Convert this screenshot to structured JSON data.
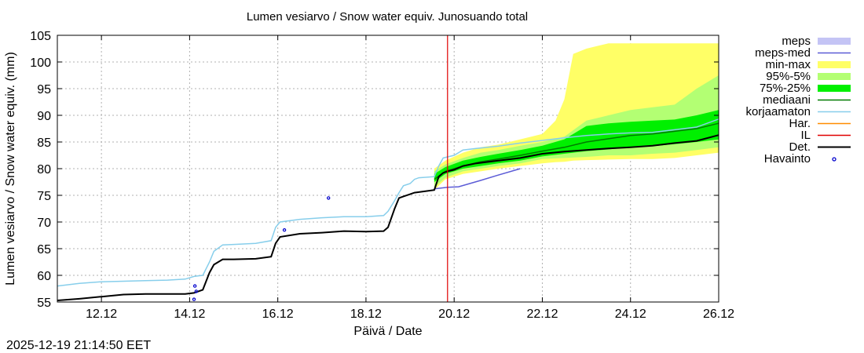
{
  "chart_data": {
    "type": "area",
    "title": "Lumen vesiarvo / Snow water equiv.  Junosuando total",
    "xlabel": "Päivä / Date",
    "ylabel": "Lumen vesiarvo / Snow water equiv. (mm)",
    "xlim": [
      11.0,
      26.0
    ],
    "ylim": [
      55,
      105
    ],
    "grid": true,
    "x_ticks": [
      {
        "x": 12,
        "label": "12.12"
      },
      {
        "x": 14,
        "label": "14.12"
      },
      {
        "x": 16,
        "label": "16.12"
      },
      {
        "x": 18,
        "label": "18.12"
      },
      {
        "x": 20,
        "label": "20.12"
      },
      {
        "x": 22,
        "label": "22.12"
      },
      {
        "x": 24,
        "label": "24.12"
      },
      {
        "x": 26,
        "label": "26.12"
      }
    ],
    "y_ticks": [
      {
        "y": 55,
        "label": "55"
      },
      {
        "y": 60,
        "label": "60"
      },
      {
        "y": 65,
        "label": "65"
      },
      {
        "y": 70,
        "label": "70"
      },
      {
        "y": 75,
        "label": "75"
      },
      {
        "y": 80,
        "label": "80"
      },
      {
        "y": 85,
        "label": "85"
      },
      {
        "y": 90,
        "label": "90"
      },
      {
        "y": 95,
        "label": "95"
      },
      {
        "y": 100,
        "label": "100"
      },
      {
        "y": 105,
        "label": "105"
      }
    ],
    "forecast_start_x": 19.85,
    "legend_position": "right",
    "legend": [
      {
        "label": "meps",
        "kind": "box",
        "color": "#c4c4f5"
      },
      {
        "label": "meps-med",
        "kind": "line",
        "color": "#5b5bd6"
      },
      {
        "label": "min-max",
        "kind": "box",
        "color": "#ffff66"
      },
      {
        "label": "95%-5%",
        "kind": "box",
        "color": "#b3ff73"
      },
      {
        "label": "75%-25%",
        "kind": "box",
        "color": "#00f000"
      },
      {
        "label": "mediaani",
        "kind": "line",
        "color": "#007a00"
      },
      {
        "label": "korjaamaton",
        "kind": "line",
        "color": "#87ceeb"
      },
      {
        "label": "Har.",
        "kind": "line",
        "color": "#ff8c00"
      },
      {
        "label": "IL",
        "kind": "line",
        "color": "#e00000"
      },
      {
        "label": "Det.",
        "kind": "line",
        "color": "#000000"
      },
      {
        "label": "Havainto",
        "kind": "point",
        "color": "#0000cc"
      }
    ],
    "series": [
      {
        "name": "min-max",
        "type": "band",
        "color": "#ffff66",
        "x": [
          19.55,
          19.8,
          20.2,
          20.6,
          21.0,
          21.5,
          22.0,
          22.3,
          22.5,
          22.7,
          23.0,
          23.5,
          24.0,
          24.5,
          25.0,
          25.5,
          26.0
        ],
        "lower": [
          76.0,
          78.0,
          79.0,
          79.5,
          80.0,
          80.5,
          81.0,
          81.2,
          81.3,
          81.5,
          81.6,
          81.7,
          81.8,
          81.8,
          82.0,
          82.5,
          83.0
        ],
        "upper": [
          80.0,
          81.5,
          83.0,
          84.0,
          84.5,
          85.5,
          86.5,
          89.0,
          93.0,
          101.5,
          102.5,
          103.5,
          103.5,
          103.5,
          103.5,
          103.5,
          103.5
        ]
      },
      {
        "name": "95%-5%",
        "type": "band",
        "color": "#b3ff73",
        "x": [
          19.55,
          19.8,
          20.2,
          20.6,
          21.0,
          21.5,
          22.0,
          22.5,
          23.0,
          23.5,
          24.0,
          24.5,
          25.0,
          25.5,
          26.0
        ],
        "lower": [
          76.5,
          78.3,
          79.5,
          80.0,
          80.5,
          81.0,
          81.8,
          82.0,
          82.2,
          82.5,
          82.5,
          82.8,
          83.0,
          83.5,
          84.0
        ],
        "upper": [
          79.5,
          80.8,
          82.0,
          83.0,
          83.5,
          84.3,
          85.0,
          86.0,
          89.0,
          90.0,
          91.0,
          91.5,
          92.0,
          95.0,
          97.5
        ]
      },
      {
        "name": "75%-25%",
        "type": "band",
        "color": "#00f000",
        "x": [
          19.55,
          19.8,
          20.2,
          20.6,
          21.0,
          21.5,
          22.0,
          22.5,
          23.0,
          23.5,
          24.0,
          24.5,
          25.0,
          25.5,
          26.0
        ],
        "lower": [
          77.5,
          79.0,
          80.0,
          80.5,
          81.0,
          81.5,
          82.3,
          82.8,
          83.3,
          83.6,
          84.0,
          84.2,
          84.6,
          85.0,
          85.5
        ],
        "upper": [
          79.0,
          80.3,
          81.5,
          82.2,
          82.8,
          83.5,
          84.3,
          85.5,
          88.0,
          88.5,
          88.8,
          89.0,
          89.2,
          90.0,
          91.0
        ]
      },
      {
        "name": "meps-med",
        "type": "line",
        "color": "#5b5bd6",
        "x": [
          19.55,
          19.85,
          20.1,
          20.6,
          21.0,
          21.5
        ],
        "y": [
          76.2,
          76.5,
          76.6,
          77.8,
          78.8,
          80.0
        ]
      },
      {
        "name": "korjaamaton",
        "type": "line",
        "color": "#87ceeb",
        "x": [
          11.0,
          11.5,
          12.0,
          12.5,
          13.0,
          13.5,
          13.9,
          14.1,
          14.3,
          14.45,
          14.55,
          14.75,
          15.0,
          15.5,
          15.85,
          15.95,
          16.05,
          16.5,
          17.0,
          17.5,
          18.0,
          18.4,
          18.5,
          18.65,
          18.75,
          18.85,
          19.0,
          19.1,
          19.2,
          19.55,
          19.65,
          19.75,
          19.85,
          20.0,
          20.2,
          20.5,
          21.0,
          21.5,
          22.0,
          22.5,
          23.0,
          23.5,
          24.0,
          24.5,
          25.0,
          25.5,
          26.0
        ],
        "y": [
          58.0,
          58.5,
          58.8,
          58.9,
          59.0,
          59.1,
          59.3,
          59.8,
          60.0,
          62.5,
          64.5,
          65.7,
          65.8,
          66.0,
          66.5,
          69.0,
          70.0,
          70.5,
          70.8,
          71.0,
          71.0,
          71.2,
          72.0,
          74.0,
          75.5,
          76.8,
          77.2,
          78.0,
          78.3,
          78.5,
          80.5,
          82.0,
          82.2,
          82.5,
          83.5,
          83.8,
          84.2,
          84.8,
          85.3,
          85.8,
          86.2,
          86.5,
          86.7,
          86.8,
          87.3,
          87.8,
          89.3
        ]
      },
      {
        "name": "mediaani",
        "type": "line",
        "color": "#007a00",
        "x": [
          19.55,
          19.8,
          20.2,
          20.6,
          21.0,
          21.5,
          22.0,
          22.5,
          23.0,
          23.5,
          24.0,
          24.5,
          25.0,
          25.5,
          26.0
        ],
        "y": [
          78.0,
          79.5,
          80.5,
          81.3,
          81.8,
          82.5,
          83.3,
          84.0,
          85.0,
          85.6,
          86.2,
          86.5,
          87.0,
          87.5,
          88.5
        ]
      },
      {
        "name": "Det.",
        "type": "line",
        "color": "#000000",
        "x": [
          11.0,
          11.5,
          12.0,
          12.5,
          13.0,
          13.5,
          13.9,
          14.1,
          14.3,
          14.45,
          14.55,
          14.75,
          15.0,
          15.5,
          15.85,
          15.95,
          16.05,
          16.5,
          17.0,
          17.5,
          18.0,
          18.4,
          18.5,
          18.65,
          18.75,
          18.85,
          19.0,
          19.1,
          19.2,
          19.55,
          19.65,
          19.75,
          19.85,
          20.0,
          20.2,
          20.5,
          21.0,
          21.5,
          22.0,
          22.5,
          23.0,
          23.5,
          24.0,
          24.5,
          25.0,
          25.5,
          26.0
        ],
        "y": [
          55.3,
          55.6,
          56.0,
          56.4,
          56.5,
          56.5,
          56.5,
          56.7,
          57.3,
          60.5,
          62.0,
          63.0,
          63.0,
          63.1,
          63.5,
          66.0,
          67.2,
          67.8,
          68.0,
          68.3,
          68.2,
          68.3,
          69.0,
          72.5,
          74.5,
          74.8,
          75.2,
          75.5,
          75.6,
          76.0,
          78.5,
          79.2,
          79.5,
          79.8,
          80.5,
          81.0,
          81.5,
          82.0,
          82.8,
          83.2,
          83.5,
          83.8,
          84.0,
          84.3,
          84.8,
          85.2,
          86.3
        ]
      },
      {
        "name": "Havainto",
        "type": "scatter",
        "color": "#0000cc",
        "x": [
          14.1,
          14.12,
          14.15,
          16.15,
          17.15
        ],
        "y": [
          55.5,
          58.0,
          57.0,
          68.5,
          74.5
        ]
      }
    ],
    "timestamp": "2025-12-19 21:14:50 EET"
  }
}
